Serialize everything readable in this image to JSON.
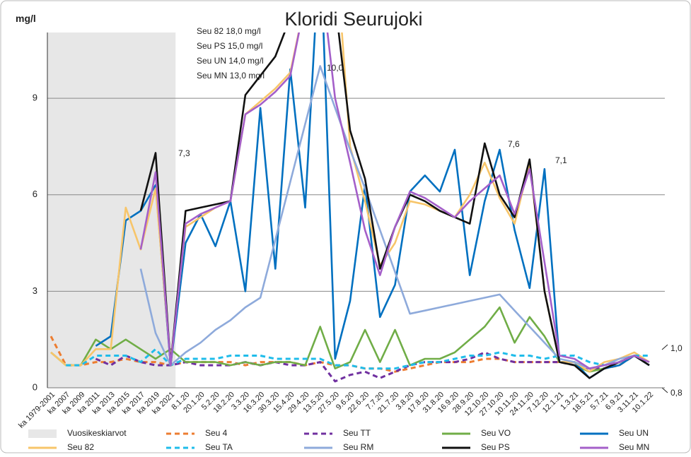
{
  "chart_data": {
    "type": "line",
    "title": "Kloridi Seurujoki",
    "y_label": "mg/l",
    "ylim": [
      0,
      11
    ],
    "yticks": [
      0,
      3,
      6,
      9
    ],
    "grid": true,
    "legend": "bottom",
    "shaded": {
      "name": "Vuosikeskiarvot",
      "color": "#e7e7e7",
      "from": "ka 1979-2001",
      "to": "ka 2021"
    },
    "categories": [
      "ka 1979-2001",
      "ka 2007",
      "ka 2009",
      "ka 2011",
      "ka 2013",
      "ka 2015",
      "ka 2017",
      "ka 2019",
      "ka 2021",
      "8.1.20",
      "20.1.20",
      "5.2.20",
      "18.2.20",
      "3.3.20",
      "16.3.20",
      "30.3.20",
      "15.4.20",
      "29.4.20",
      "13.5.20",
      "27.5.20",
      "9.6.20",
      "22.6.20",
      "7.7.20",
      "21.7.20",
      "3.8.20",
      "17.8.20",
      "31.8.20",
      "16.9.20",
      "28.9.20",
      "12.10.20",
      "27.10.20",
      "10.11.20",
      "24.11.20",
      "7.12.20",
      "12.1.21",
      "1.3.21",
      "18.5.21",
      "5.7.21",
      "6.9.21",
      "3.11.21",
      "10.1.22"
    ],
    "series": [
      {
        "name": "Seu 4",
        "color": "#ed7d31",
        "dash": true,
        "values": [
          1.6,
          0.7,
          0.7,
          0.8,
          0.8,
          0.9,
          0.8,
          0.8,
          0.7,
          0.8,
          0.8,
          0.8,
          0.8,
          0.7,
          0.8,
          0.8,
          0.8,
          0.7,
          0.8,
          0.7,
          0.7,
          0.6,
          0.6,
          0.5,
          0.6,
          0.7,
          0.8,
          0.8,
          0.8,
          0.9,
          0.9,
          0.8,
          0.8,
          0.8,
          0.8,
          0.8,
          0.6,
          0.6,
          0.7,
          1.0,
          0.8
        ]
      },
      {
        "name": "Seu TT",
        "color": "#7030a0",
        "dash": true,
        "values": [
          null,
          null,
          null,
          0.9,
          0.7,
          1.0,
          0.8,
          0.7,
          0.7,
          0.8,
          0.7,
          0.7,
          0.7,
          0.8,
          0.7,
          0.8,
          0.7,
          0.7,
          0.8,
          0.2,
          0.4,
          0.5,
          0.3,
          0.5,
          0.7,
          0.8,
          0.8,
          0.8,
          0.9,
          1.1,
          0.9,
          0.8,
          0.8,
          0.8,
          0.8,
          0.7,
          0.6,
          0.6,
          0.8,
          1.0,
          0.8
        ]
      },
      {
        "name": "Seu VO",
        "color": "#70ad47",
        "dash": false,
        "values": [
          1.1,
          0.7,
          0.7,
          1.5,
          1.2,
          1.5,
          1.2,
          0.9,
          1.2,
          0.8,
          0.8,
          0.8,
          0.7,
          0.8,
          0.7,
          0.8,
          0.8,
          0.7,
          1.9,
          0.6,
          0.8,
          1.8,
          0.8,
          1.8,
          0.7,
          0.9,
          0.9,
          1.1,
          1.5,
          1.9,
          2.5,
          1.4,
          2.2,
          1.6,
          0.8,
          0.7,
          0.5,
          0.6,
          0.8,
          1.0,
          0.8
        ]
      },
      {
        "name": "Seu UN",
        "color": "#0070c0",
        "dash": false,
        "values": [
          null,
          null,
          null,
          1.3,
          1.6,
          5.2,
          5.5,
          6.3,
          0.7,
          4.5,
          5.4,
          4.4,
          5.8,
          3.0,
          8.7,
          3.7,
          9.9,
          5.6,
          14.0,
          0.9,
          2.7,
          6.3,
          2.2,
          3.2,
          6.1,
          6.6,
          6.1,
          7.4,
          3.5,
          5.8,
          7.4,
          4.9,
          3.1,
          6.8,
          0.8,
          0.8,
          0.3,
          0.6,
          0.7,
          1.0,
          0.7
        ]
      },
      {
        "name": "Seu 82",
        "color": "#f7c56a",
        "dash": false,
        "values": [
          1.1,
          0.7,
          0.7,
          1.2,
          1.2,
          5.6,
          4.3,
          6.2,
          0.8,
          5.0,
          5.3,
          5.6,
          5.8,
          8.5,
          8.9,
          9.3,
          9.8,
          12.0,
          18.0,
          14.0,
          7.5,
          5.8,
          3.8,
          4.5,
          5.8,
          5.7,
          5.5,
          5.3,
          6.0,
          7.0,
          5.9,
          5.1,
          7.0,
          3.0,
          0.8,
          0.8,
          0.5,
          0.8,
          0.9,
          1.1,
          0.8
        ]
      },
      {
        "name": "Seu TA",
        "color": "#1fbcea",
        "dash": true,
        "values": [
          null,
          0.7,
          0.7,
          1.0,
          1.0,
          1.0,
          0.8,
          1.2,
          0.7,
          0.9,
          0.9,
          0.9,
          1.0,
          1.0,
          1.0,
          0.9,
          0.9,
          0.9,
          0.9,
          0.7,
          0.7,
          0.6,
          0.6,
          0.6,
          0.7,
          0.8,
          0.8,
          0.9,
          1.0,
          1.0,
          1.1,
          1.0,
          1.0,
          0.9,
          1.0,
          1.0,
          0.8,
          0.7,
          0.8,
          1.0,
          1.0
        ]
      },
      {
        "name": "Seu RM",
        "color": "#8eaadb",
        "dash": false,
        "values": [
          null,
          null,
          null,
          null,
          null,
          null,
          3.7,
          1.7,
          0.7,
          1.1,
          1.4,
          1.8,
          2.1,
          2.5,
          2.8,
          4.6,
          6.4,
          8.2,
          10.0,
          8.7,
          7.4,
          6.2,
          4.9,
          3.6,
          2.3,
          2.4,
          2.5,
          2.6,
          2.7,
          2.8,
          2.9,
          2.4,
          1.9,
          1.4,
          0.9,
          0.8,
          0.6,
          0.7,
          0.9,
          1.0,
          0.7
        ]
      },
      {
        "name": "Seu PS",
        "color": "#111111",
        "dash": false,
        "values": [
          null,
          null,
          null,
          null,
          null,
          null,
          5.5,
          7.3,
          0.7,
          5.5,
          5.6,
          5.7,
          5.8,
          9.1,
          9.7,
          10.3,
          11.5,
          13.0,
          15.0,
          12.0,
          8.0,
          6.5,
          3.7,
          5.0,
          6.0,
          5.8,
          5.5,
          5.3,
          5.1,
          7.6,
          6.0,
          5.3,
          7.1,
          3.0,
          0.8,
          0.7,
          0.3,
          0.6,
          0.8,
          1.0,
          0.7
        ]
      },
      {
        "name": "Seu MN",
        "color": "#a45fc9",
        "dash": false,
        "values": [
          null,
          null,
          null,
          null,
          null,
          null,
          4.3,
          6.7,
          0.7,
          5.1,
          5.4,
          5.6,
          5.8,
          8.5,
          8.8,
          9.2,
          9.7,
          12.0,
          13.0,
          9.0,
          7.0,
          4.9,
          3.5,
          5.0,
          6.1,
          5.9,
          5.6,
          5.3,
          5.8,
          6.2,
          6.6,
          5.4,
          6.8,
          3.9,
          1.0,
          0.9,
          0.6,
          0.7,
          0.8,
          1.0,
          0.8
        ]
      }
    ],
    "annotations": [
      "Seu 82 18,0 mg/l",
      "Seu PS 15,0 mg/l",
      "Seu UN 14,0 mg/l",
      "Seu MN 13,0 mg/l",
      "10,0",
      "7,3",
      "7,6",
      "7,1",
      "1,0",
      "0,8"
    ]
  }
}
